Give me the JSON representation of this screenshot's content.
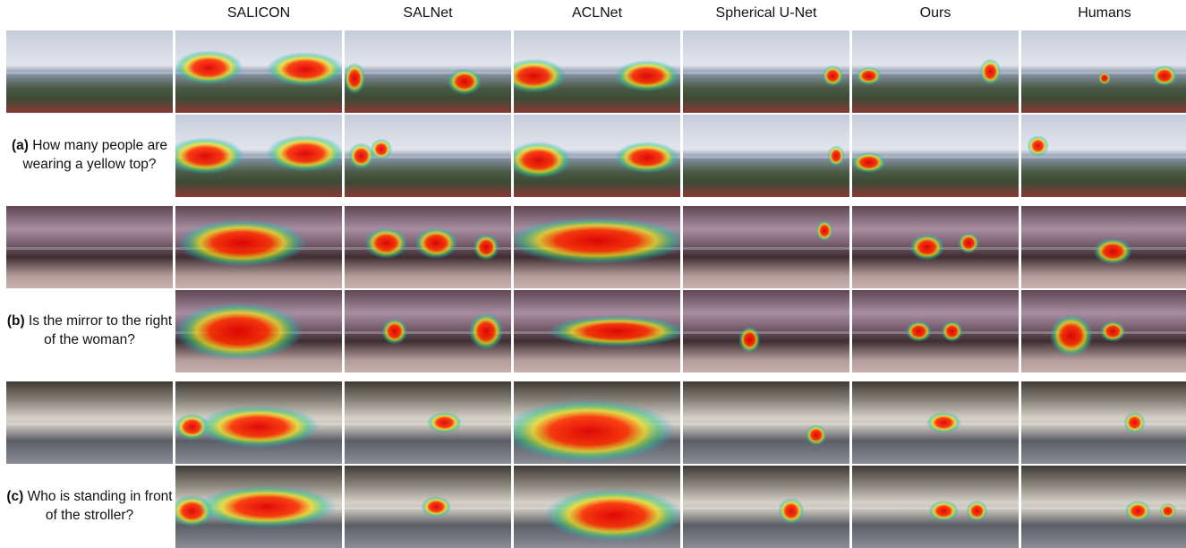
{
  "columns": [
    "SALICON",
    "SALNet",
    "ACLNet",
    "Spherical U-Net",
    "Ours",
    "Humans"
  ],
  "scenes": [
    {
      "tag": "(a)",
      "question": "How many people are wearing a yellow top?"
    },
    {
      "tag": "(b)",
      "question": "Is the mirror to the right of the woman?"
    },
    {
      "tag": "(c)",
      "question": "Who is standing in front of the stroller?"
    }
  ]
}
